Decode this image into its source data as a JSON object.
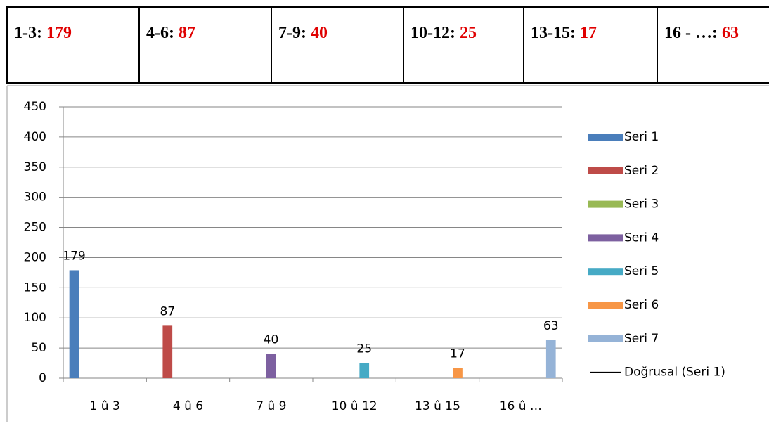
{
  "table": {
    "cells": [
      {
        "label": "1-3:",
        "value": 179
      },
      {
        "label": "4-6:",
        "value": 87
      },
      {
        "label": "7-9:",
        "value": 40
      },
      {
        "label": "10-12:",
        "value": 25
      },
      {
        "label": "13-15:",
        "value": 17
      },
      {
        "label": "16 - …:",
        "value": 63
      }
    ]
  },
  "chart_data": {
    "type": "bar",
    "categories": [
      "1 û 3",
      "4 û 6",
      "7 û 9",
      "10 û 12",
      "13 û 15",
      "16 û …"
    ],
    "series": [
      {
        "name": "Seri 1",
        "color": "#4a7ebb",
        "values": [
          179,
          null,
          null,
          null,
          null,
          null
        ]
      },
      {
        "name": "Seri 2",
        "color": "#be4b48",
        "values": [
          null,
          87,
          null,
          null,
          null,
          null
        ]
      },
      {
        "name": "Seri 3",
        "color": "#98b954",
        "values": [
          null,
          null,
          null,
          null,
          null,
          null
        ]
      },
      {
        "name": "Seri 4",
        "color": "#7d60a0",
        "values": [
          null,
          null,
          40,
          null,
          null,
          null
        ]
      },
      {
        "name": "Seri 5",
        "color": "#46aac5",
        "values": [
          null,
          null,
          null,
          25,
          null,
          null
        ]
      },
      {
        "name": "Seri 6",
        "color": "#f79646",
        "values": [
          null,
          null,
          null,
          null,
          17,
          null
        ]
      },
      {
        "name": "Seri 7",
        "color": "#95b3d7",
        "values": [
          null,
          null,
          null,
          null,
          null,
          63
        ]
      }
    ],
    "trendline": {
      "name": "Doğrusal (Seri 1)",
      "color": "#000000"
    },
    "ylim": [
      0,
      450
    ],
    "yticks": [
      0,
      50,
      100,
      150,
      200,
      250,
      300,
      350,
      400,
      450
    ],
    "grid": true,
    "legend": "right"
  }
}
